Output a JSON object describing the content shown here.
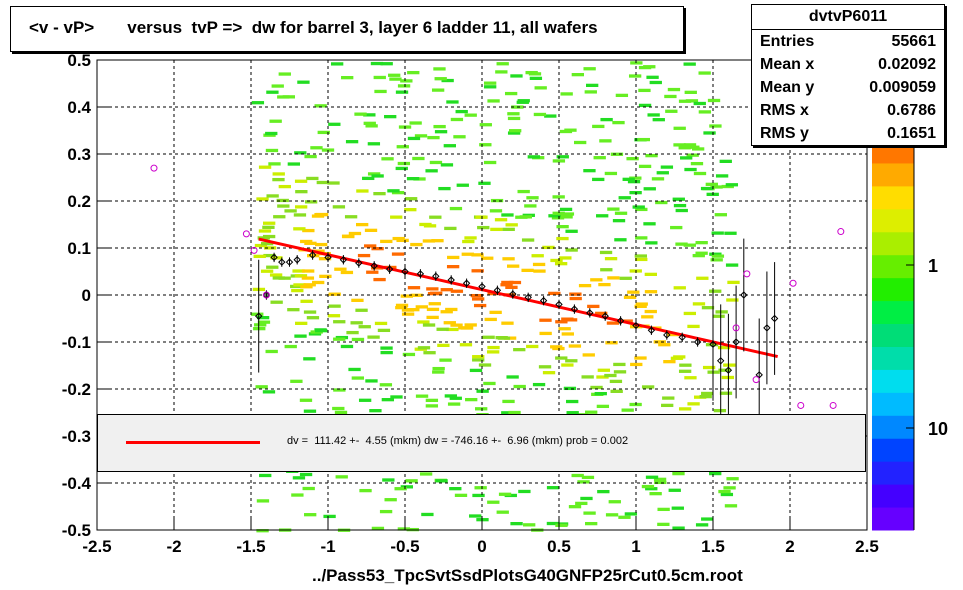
{
  "title": "<v - vP>       versus  tvP =>  dw for barrel 3, layer 6 ladder 11, all wafers",
  "stats": {
    "name": "dvtvP6011",
    "rows": [
      {
        "key": "Entries",
        "value": "55661"
      },
      {
        "key": "Mean x",
        "value": "0.02092"
      },
      {
        "key": "Mean y",
        "value": "0.009059"
      },
      {
        "key": "RMS x",
        "value": "0.6786"
      },
      {
        "key": "RMS y",
        "value": "0.1651"
      }
    ]
  },
  "legend": {
    "text": "dv =  111.42 +-  4.55 (mkm) dw = -746.16 +-  6.96 (mkm) prob = 0.002",
    "line_color": "#ff0000"
  },
  "colors": {
    "fit": "#ff0000",
    "profile_marker": "#000000",
    "open_marker": "#cc00cc"
  },
  "chart_data": {
    "type": "heatmap",
    "title": "<v - vP>       versus  tvP =>  dw for barrel 3, layer 6 ladder 11, all wafers",
    "xlabel": "../Pass53_TpcSvtSsdPlotsG40GNFP25rCut0.5cm.root",
    "ylabel": "",
    "xlim": [
      -2.5,
      2.5
    ],
    "ylim": [
      -0.5,
      0.5
    ],
    "x_ticks": [
      "-2.5",
      "-2",
      "-1.5",
      "-1",
      "-0.5",
      "0",
      "0.5",
      "1",
      "1.5",
      "2",
      "2.5"
    ],
    "y_ticks": [
      "-0.5",
      "-0.4",
      "-0.3",
      "-0.2",
      "-0.1",
      "0",
      "0.1",
      "0.2",
      "0.3",
      "0.4",
      "0.5"
    ],
    "grid": true,
    "z_scale": "log",
    "z_ticks": [
      "1",
      "10"
    ],
    "fit_line": {
      "x": [
        -1.45,
        1.92
      ],
      "y": [
        0.119,
        -0.131
      ]
    },
    "profile": {
      "x": [
        -1.45,
        -1.4,
        -1.35,
        -1.3,
        -1.25,
        -1.2,
        -1.1,
        -1.0,
        -0.9,
        -0.8,
        -0.7,
        -0.6,
        -0.5,
        -0.4,
        -0.3,
        -0.2,
        -0.1,
        0.0,
        0.1,
        0.2,
        0.3,
        0.4,
        0.5,
        0.6,
        0.7,
        0.8,
        0.9,
        1.0,
        1.1,
        1.2,
        1.3,
        1.4,
        1.5,
        1.55,
        1.6,
        1.65,
        1.7,
        1.8,
        1.85,
        1.9
      ],
      "y": [
        -0.045,
        0.0,
        0.08,
        0.07,
        0.07,
        0.075,
        0.085,
        0.08,
        0.075,
        0.068,
        0.062,
        0.055,
        0.05,
        0.045,
        0.04,
        0.032,
        0.025,
        0.018,
        0.01,
        0.002,
        -0.005,
        -0.012,
        -0.02,
        -0.03,
        -0.038,
        -0.045,
        -0.055,
        -0.065,
        -0.075,
        -0.085,
        -0.09,
        -0.1,
        -0.105,
        -0.14,
        -0.16,
        -0.1,
        0.0,
        -0.17,
        -0.07,
        -0.05
      ]
    },
    "outliers": {
      "x": [
        -2.13,
        -1.53,
        -1.48,
        -1.4,
        1.65,
        1.72,
        1.78,
        2.02,
        2.07,
        2.28,
        2.33
      ],
      "y": [
        0.27,
        0.13,
        0.095,
        0.0,
        -0.07,
        0.045,
        -0.18,
        0.025,
        -0.235,
        -0.235,
        0.135
      ]
    }
  }
}
